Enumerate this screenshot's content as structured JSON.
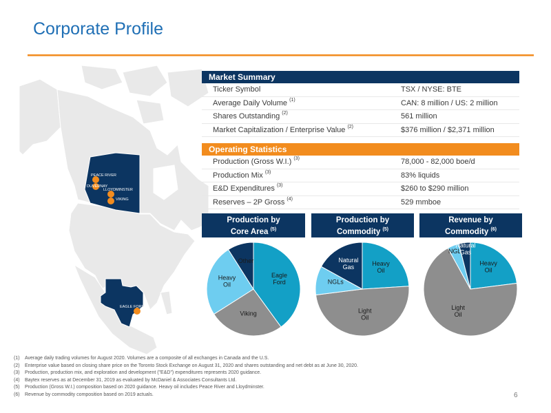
{
  "title": "Corporate Profile",
  "map_labels": {
    "peace_river": "PEACE RIVER",
    "duvernay": "DUVERNAY",
    "lloydminster": "LLOYDMINSTER",
    "viking": "VIKING",
    "eagle_ford": "EAGLE FORD"
  },
  "market_summary": {
    "heading": "Market Summary",
    "rows": [
      {
        "label": "Ticker Symbol",
        "sup": "",
        "value": "TSX / NYSE: BTE"
      },
      {
        "label": "Average Daily Volume",
        "sup": "(1)",
        "value": "CAN: 8 million / US: 2 million"
      },
      {
        "label": "Shares Outstanding",
        "sup": "(2)",
        "value": "561 million"
      },
      {
        "label": "Market Capitalization / Enterprise Value",
        "sup": "(2)",
        "value": "$376 million / $2,371 million"
      }
    ]
  },
  "operating_statistics": {
    "heading": "Operating Statistics",
    "rows": [
      {
        "label": "Production (Gross W.I.)",
        "sup": "(3)",
        "value": "78,000 - 82,000 boe/d"
      },
      {
        "label": "Production Mix",
        "sup": "(3)",
        "value": "83% liquids"
      },
      {
        "label": "E&D Expenditures",
        "sup": "(3)",
        "value": "$260 to $290 million"
      },
      {
        "label": "Reserves – 2P Gross",
        "sup": "(4)",
        "value": "529 mmboe"
      }
    ]
  },
  "chart_heads": [
    {
      "line1": "Production by",
      "line2": "Core Area",
      "sup": "(5)"
    },
    {
      "line1": "Production by",
      "line2": "Commodity",
      "sup": "(5)"
    },
    {
      "line1": "Revenue by",
      "line2": "Commodity",
      "sup": "(6)"
    }
  ],
  "colors": {
    "navy": "#0c3561",
    "orange": "#f28c1e",
    "teal": "#13a0c6",
    "light_blue": "#6ecdf0",
    "grey": "#8e8e8e"
  },
  "chart_data": [
    {
      "type": "pie",
      "title": "Production by Core Area (5)",
      "slices": [
        {
          "label": "Eagle Ford",
          "label_lines": [
            "Eagle",
            "Ford"
          ],
          "value": 40,
          "color": "#13a0c6",
          "text_color": "#1a1a1a"
        },
        {
          "label": "Viking",
          "label_lines": [
            "Viking"
          ],
          "value": 26,
          "color": "#8e8e8e",
          "text_color": "#1a1a1a"
        },
        {
          "label": "Heavy Oil",
          "label_lines": [
            "Heavy",
            "Oil"
          ],
          "value": 25,
          "color": "#6ecdf0",
          "text_color": "#1a1a1a"
        },
        {
          "label": "Other",
          "label_lines": [
            "Other"
          ],
          "value": 9,
          "color": "#0c3561",
          "text_color": "#1a1a1a"
        }
      ]
    },
    {
      "type": "pie",
      "title": "Production by Commodity (5)",
      "slices": [
        {
          "label": "Heavy Oil",
          "label_lines": [
            "Heavy",
            "Oil"
          ],
          "value": 24,
          "color": "#13a0c6",
          "text_color": "#1a1a1a"
        },
        {
          "label": "Light Oil",
          "label_lines": [
            "Light",
            "Oil"
          ],
          "value": 49,
          "color": "#8e8e8e",
          "text_color": "#1a1a1a"
        },
        {
          "label": "NGLs",
          "label_lines": [
            "NGLs"
          ],
          "value": 10,
          "color": "#6ecdf0",
          "text_color": "#1a1a1a"
        },
        {
          "label": "Natural Gas",
          "label_lines": [
            "Natural",
            "Gas"
          ],
          "value": 17,
          "color": "#0c3561",
          "text_color": "#ffffff"
        }
      ]
    },
    {
      "type": "pie",
      "title": "Revenue by Commodity (6)",
      "slices": [
        {
          "label": "Heavy Oil",
          "label_lines": [
            "Heavy",
            "Oil"
          ],
          "value": 23,
          "color": "#13a0c6",
          "text_color": "#1a1a1a"
        },
        {
          "label": "Light Oil",
          "label_lines": [
            "Light",
            "Oil"
          ],
          "value": 69,
          "color": "#8e8e8e",
          "text_color": "#1a1a1a"
        },
        {
          "label": "NGLs",
          "label_lines": [
            "NGLs"
          ],
          "value": 4,
          "color": "#6ecdf0",
          "text_color": "#1a1a1a"
        },
        {
          "label": "Natural Gas",
          "label_lines": [
            "Natural",
            "Gas"
          ],
          "value": 4,
          "color": "#0c3561",
          "text_color": "#ffffff"
        }
      ]
    }
  ],
  "footnotes": [
    {
      "num": "(1)",
      "text": "Average daily trading volumes for August 2020. Volumes are a composite of all exchanges in Canada and the U.S."
    },
    {
      "num": "(2)",
      "text": "Enterprise value based on closing share price on the Toronto Stock Exchange on August 31, 2020 and shares outstanding and net debt as at June 30, 2020."
    },
    {
      "num": "(3)",
      "text": "Production, production mix, and exploration and development (\"E&D\") expenditures represents 2020 guidance."
    },
    {
      "num": "(4)",
      "text": "Baytex reserves as at December 31, 2019 as evaluated by McDaniel & Associates Consultants Ltd."
    },
    {
      "num": "(5)",
      "text": "Production (Gross W.I.) composition based on 2020 guidance. Heavy oil includes Peace River and Lloydminster."
    },
    {
      "num": "(6)",
      "text": "Revenue by commodity composition based on 2019 actuals."
    }
  ],
  "page_number": "6"
}
